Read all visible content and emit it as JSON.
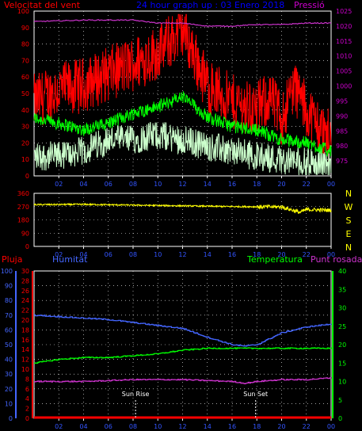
{
  "colors": {
    "background": "#000000",
    "wind_axis": "#ff0000",
    "pressure_axis": "#cc00cc",
    "title": "#0000ff",
    "gust": "#ff0000",
    "mean_wind": "#00ff00",
    "min_wind": "#ccffcc",
    "pressure": "#cc33cc",
    "direction": "#ffff00",
    "compass": "#ffff00",
    "rain": "#ff0000",
    "humidity": "#4466ff",
    "temperature": "#00ff00",
    "dewpoint": "#cc33cc",
    "grid": "#ffffff",
    "sun_marker": "#ffffff"
  },
  "panel1": {
    "left_label": "Velocitat del vent",
    "title": "24 hour graph up : 03 Enero 2018",
    "right_label": "Pressió"
  },
  "panel2": {
    "compass": [
      "N",
      "W",
      "S",
      "E",
      "N"
    ]
  },
  "panel3": {
    "rain_label": "Pluja",
    "humidity_label": "Humitat",
    "temperature_label": "Temperatura",
    "dewpoint_label": "Punt rosada",
    "sunrise_label": "Sun Rise",
    "sunset_label": "Sun Set"
  },
  "chart_data": [
    {
      "type": "line",
      "title": "24 hour graph up : 03 Enero 2018",
      "x_ticks": [
        "02",
        "04",
        "06",
        "08",
        "10",
        "12",
        "14",
        "16",
        "18",
        "20",
        "22",
        "00"
      ],
      "y_left": {
        "label": "Velocitat del vent",
        "range": [
          0,
          100
        ],
        "ticks": [
          0,
          10,
          20,
          30,
          40,
          50,
          60,
          70,
          80,
          90,
          100
        ]
      },
      "y_right": {
        "label": "Pressió",
        "range": [
          970,
          1025
        ],
        "ticks": [
          975,
          980,
          985,
          990,
          995,
          1000,
          1005,
          1010,
          1015,
          1020,
          1025
        ]
      },
      "grid": "dotted",
      "series": [
        {
          "name": "gust",
          "hour": [
            0,
            2,
            4,
            6,
            8,
            10,
            11.5,
            12,
            13,
            14,
            16,
            18,
            19,
            20,
            21,
            22,
            23,
            24
          ],
          "values": [
            45,
            52,
            55,
            62,
            68,
            75,
            85,
            90,
            72,
            55,
            45,
            40,
            48,
            35,
            55,
            40,
            30,
            22
          ]
        },
        {
          "name": "mean",
          "hour": [
            0,
            2,
            4,
            6,
            8,
            10,
            12,
            13,
            14,
            16,
            18,
            20,
            22,
            24
          ],
          "values": [
            35,
            32,
            28,
            32,
            38,
            42,
            48,
            42,
            36,
            30,
            28,
            22,
            20,
            15
          ]
        },
        {
          "name": "min",
          "hour": [
            0,
            2,
            4,
            6,
            8,
            10,
            12,
            14,
            16,
            18,
            20,
            22,
            24
          ],
          "values": [
            12,
            12,
            15,
            22,
            22,
            25,
            22,
            18,
            15,
            12,
            10,
            8,
            8
          ]
        },
        {
          "name": "pressure",
          "axis": "right",
          "hour": [
            0,
            4,
            8,
            10,
            12,
            14,
            16,
            18,
            20,
            22,
            24
          ],
          "values": [
            1021.5,
            1022,
            1022,
            1021,
            1021,
            1020,
            1020,
            1020.5,
            1020.5,
            1021,
            1021
          ]
        }
      ]
    },
    {
      "type": "line",
      "x_ticks": [
        "02",
        "04",
        "06",
        "08",
        "10",
        "12",
        "14",
        "16",
        "18",
        "20",
        "22",
        "00"
      ],
      "y": {
        "range": [
          0,
          360
        ],
        "ticks": [
          0,
          90,
          180,
          270,
          360
        ]
      },
      "right_labels": [
        "N",
        "W",
        "S",
        "E",
        "N"
      ],
      "series": [
        {
          "name": "wind direction",
          "hour": [
            0,
            4,
            8,
            12,
            16,
            20,
            21.5,
            22,
            24
          ],
          "values": [
            283,
            285,
            280,
            275,
            270,
            268,
            230,
            250,
            245
          ]
        }
      ]
    },
    {
      "type": "line",
      "x_ticks": [
        "02",
        "04",
        "06",
        "08",
        "10",
        "12",
        "14",
        "16",
        "18",
        "20",
        "22",
        "00"
      ],
      "y_humidity": {
        "label": "Humitat",
        "range": [
          0,
          100
        ],
        "ticks": [
          0,
          10,
          20,
          30,
          40,
          50,
          60,
          70,
          80,
          90,
          100
        ]
      },
      "y_rain": {
        "label": "Pluja",
        "range": [
          0,
          30
        ],
        "ticks": [
          0,
          2,
          4,
          6,
          8,
          10,
          12,
          14,
          16,
          18,
          20,
          22,
          24,
          26,
          28,
          30
        ]
      },
      "y_temperature": {
        "label": "Temperatura",
        "range": [
          0,
          40
        ],
        "ticks": [
          0,
          5,
          10,
          15,
          20,
          25,
          30,
          35,
          40
        ]
      },
      "y_dewpoint": {
        "label": "Punt rosada"
      },
      "annotations": [
        {
          "text": "Sun Rise",
          "hour": 8.2
        },
        {
          "text": "Sun Set",
          "hour": 17.9
        }
      ],
      "series": [
        {
          "name": "humidity",
          "axis": "humidity",
          "hour": [
            0,
            2,
            4,
            6,
            8,
            10,
            12,
            14,
            16,
            17,
            18,
            20,
            22,
            24
          ],
          "values": [
            70,
            69,
            68,
            67,
            65,
            63,
            61,
            55,
            50,
            49,
            50,
            58,
            62,
            64
          ]
        },
        {
          "name": "temperature",
          "axis": "temperature",
          "hour": [
            0,
            2,
            4,
            6,
            8,
            10,
            12,
            14,
            16,
            18,
            20,
            22,
            24
          ],
          "values": [
            15,
            16,
            16.5,
            16.5,
            17,
            17.5,
            18.5,
            19,
            19,
            19,
            19,
            19,
            19
          ]
        },
        {
          "name": "dewpoint",
          "axis": "temperature",
          "hour": [
            0,
            4,
            8,
            12,
            16,
            17,
            18,
            20,
            22,
            24
          ],
          "values": [
            10,
            10,
            10.5,
            10.5,
            10,
            9.5,
            10,
            10.5,
            10.5,
            11
          ]
        },
        {
          "name": "rain",
          "axis": "rain",
          "hour": [
            0,
            24
          ],
          "values": [
            0,
            0
          ]
        }
      ]
    }
  ]
}
